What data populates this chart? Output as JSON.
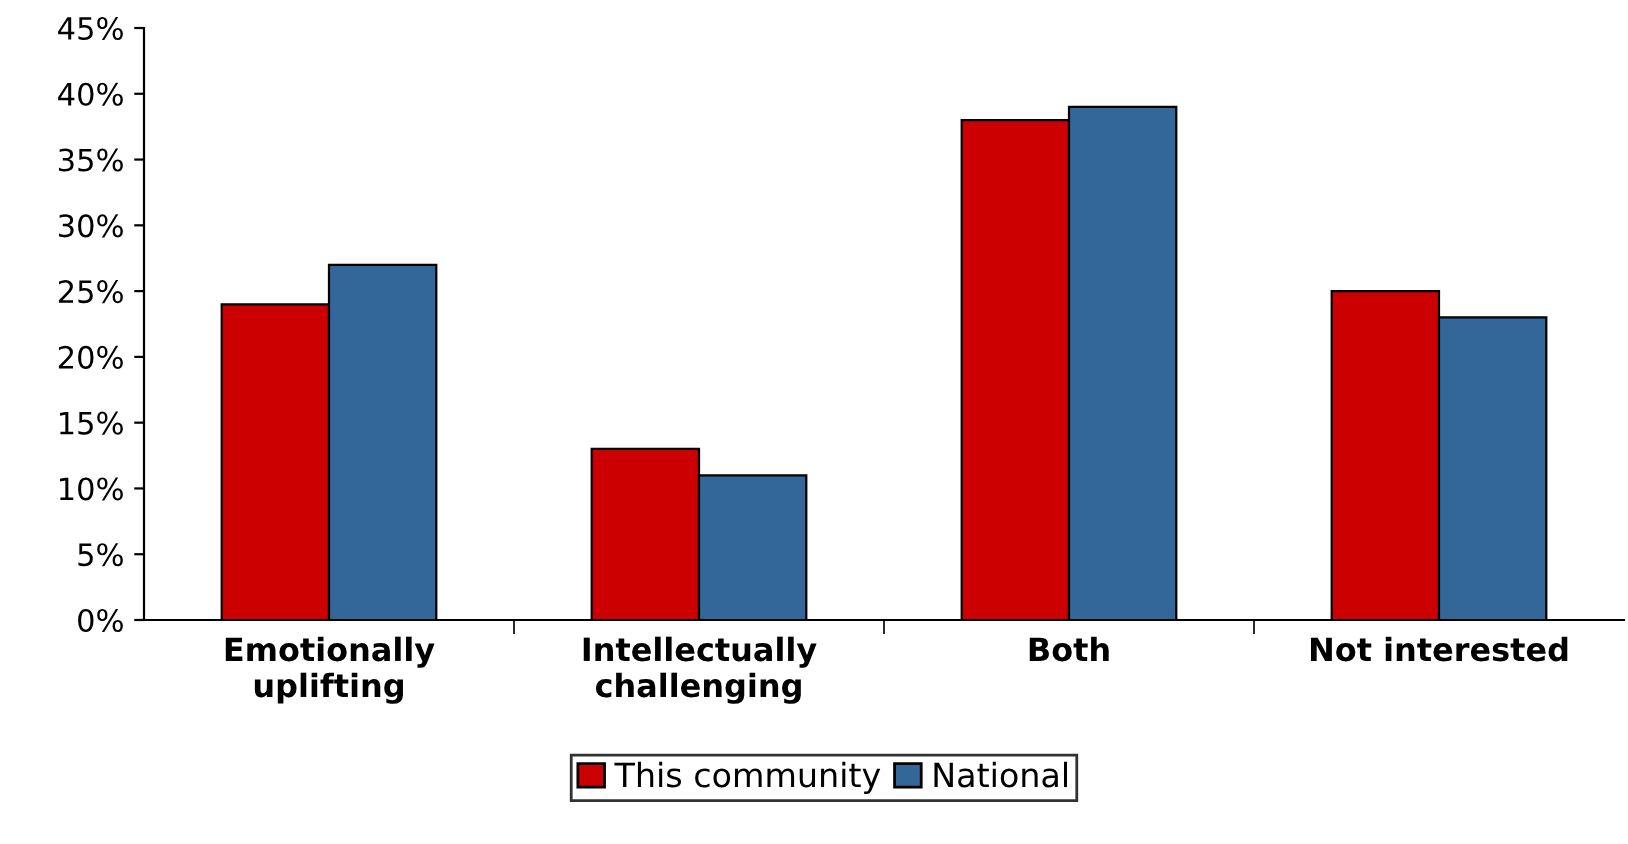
{
  "chart_data": {
    "type": "bar",
    "categories": [
      "Emotionally\nuplifting",
      "Intellectually\nchallenging",
      "Both",
      "Not interested"
    ],
    "series": [
      {
        "name": "This community",
        "color": "#cc0000",
        "values": [
          24,
          13,
          38,
          25
        ]
      },
      {
        "name": "National",
        "color": "#336699",
        "values": [
          27,
          11,
          39,
          23
        ]
      }
    ],
    "ylim": [
      0,
      45
    ],
    "yticks": [
      {
        "value": 0,
        "label": "0%"
      },
      {
        "value": 5,
        "label": "5%"
      },
      {
        "value": 10,
        "label": "10%"
      },
      {
        "value": 15,
        "label": "15%"
      },
      {
        "value": 20,
        "label": "20%"
      },
      {
        "value": 25,
        "label": "25%"
      },
      {
        "value": 30,
        "label": "30%"
      },
      {
        "value": 35,
        "label": "35%"
      },
      {
        "value": 40,
        "label": "40%"
      },
      {
        "value": 45,
        "label": "45%"
      }
    ],
    "grid": false,
    "legend": "bottom"
  }
}
